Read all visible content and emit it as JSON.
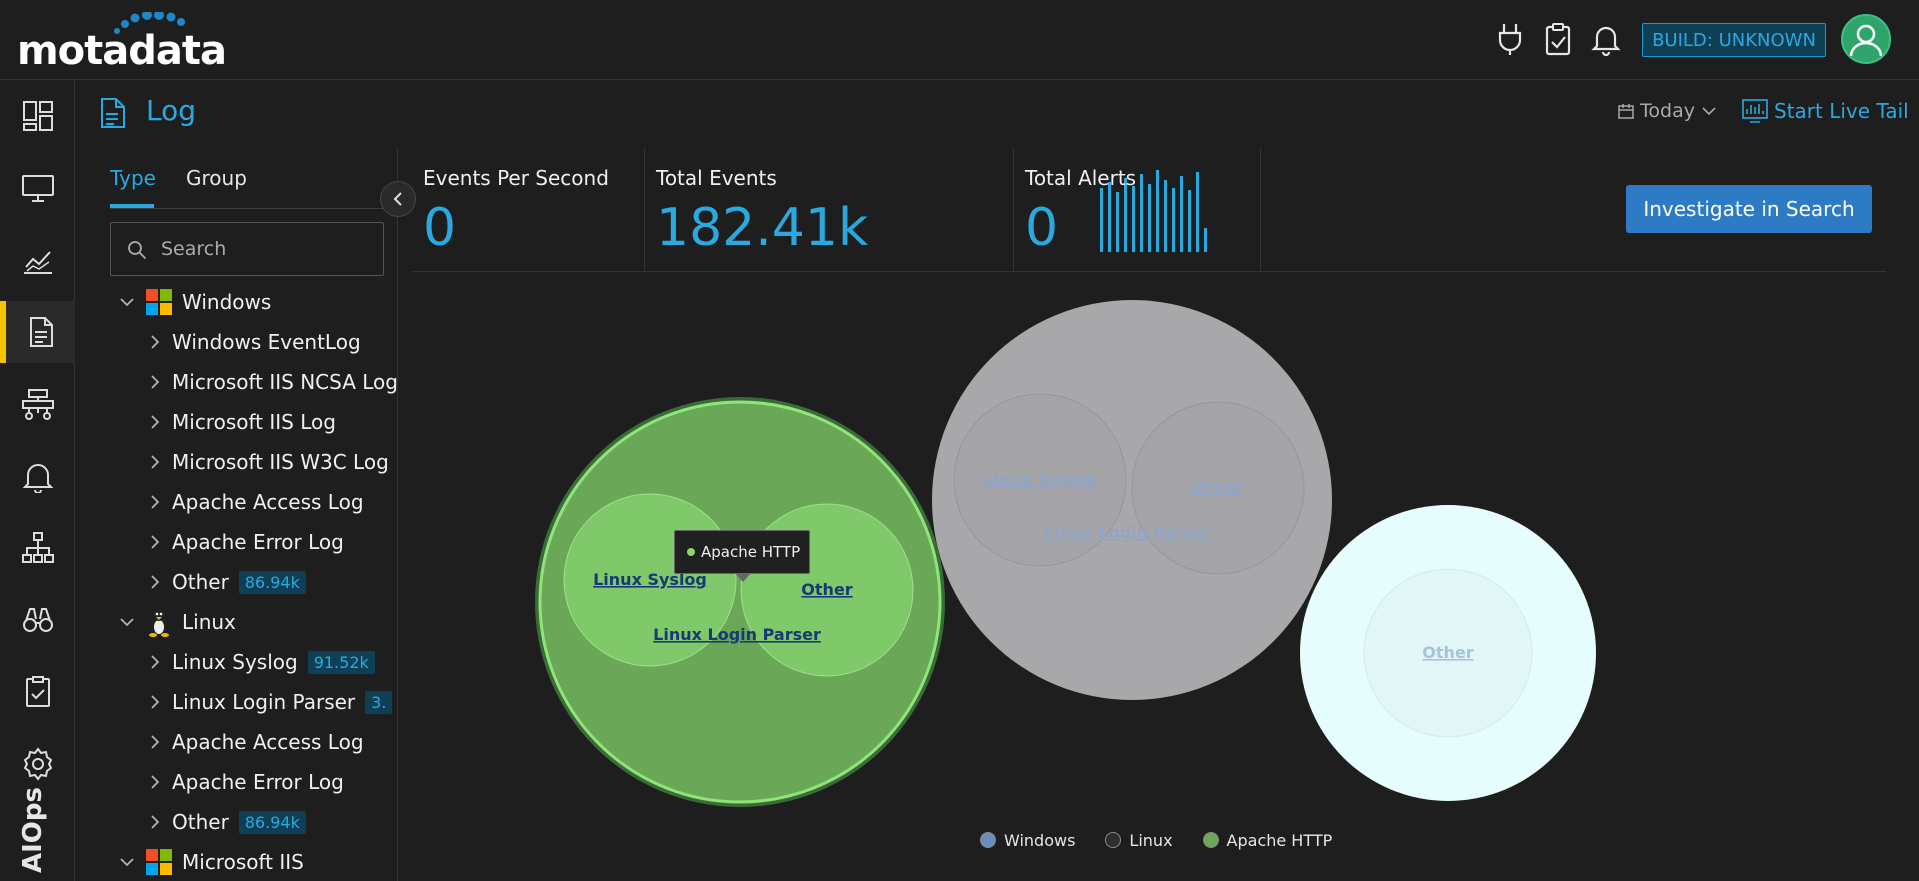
{
  "brand": {
    "logo_text": "motadata"
  },
  "topbar": {
    "build_label": "BUILD: UNKNOWN",
    "icons": [
      "plug-icon",
      "clipboard-check-icon",
      "bell-icon",
      "user-avatar"
    ]
  },
  "nav": {
    "items": [
      "dashboard-icon",
      "monitor-icon",
      "metrics-icon",
      "log-icon",
      "topology-icon",
      "alert-bell-icon",
      "network-icon",
      "binoculars-icon",
      "report-icon",
      "settings-icon"
    ],
    "active": "log-icon",
    "aiops_label": "AIOps"
  },
  "page": {
    "title": "Log",
    "time_range": "Today",
    "live_tail": "Start Live Tail"
  },
  "sidebar": {
    "tabs": [
      {
        "label": "Type"
      },
      {
        "label": "Group"
      }
    ],
    "active_tab": "Type",
    "search_placeholder": "Search",
    "tree": [
      {
        "label": "Windows",
        "level": 0,
        "expanded": true,
        "icon": "windows-icon"
      },
      {
        "label": "Windows EventLog",
        "level": 1
      },
      {
        "label": "Microsoft IIS NCSA Log",
        "level": 1
      },
      {
        "label": "Microsoft IIS Log",
        "level": 1
      },
      {
        "label": "Microsoft IIS W3C Log",
        "level": 1
      },
      {
        "label": "Apache Access Log",
        "level": 1
      },
      {
        "label": "Apache Error Log",
        "level": 1
      },
      {
        "label": "Other",
        "level": 1,
        "badge": "86.94k"
      },
      {
        "label": "Linux",
        "level": 0,
        "expanded": true,
        "icon": "linux-icon"
      },
      {
        "label": "Linux Syslog",
        "level": 1,
        "badge": "91.52k"
      },
      {
        "label": "Linux Login Parser",
        "level": 1,
        "badge": "3."
      },
      {
        "label": "Apache Access Log",
        "level": 1
      },
      {
        "label": "Apache Error Log",
        "level": 1
      },
      {
        "label": "Other",
        "level": 1,
        "badge": "86.94k"
      },
      {
        "label": "Microsoft IIS",
        "level": 0,
        "expanded": true,
        "icon": "microsoft-icon"
      }
    ]
  },
  "stats": {
    "eps_label": "Events Per Second",
    "eps_value": "0",
    "total_events_label": "Total Events",
    "total_events_value": "182.41k",
    "total_alerts_label": "Total Alerts",
    "total_alerts_value": "0",
    "investigate_button": "Investigate in Search"
  },
  "chart_data": {
    "type": "bubble-pack",
    "groups": [
      {
        "name": "Apache HTTP",
        "color": "#6aa858",
        "children": [
          "Linux Syslog",
          "Other",
          "Linux Login Parser"
        ]
      },
      {
        "name": "Linux",
        "color": "#a8a7aa",
        "children": [
          "Linux Syslog",
          "Other",
          "Linux Login Parser"
        ]
      },
      {
        "name": "Windows",
        "color": "#e6fdfe",
        "children": [
          "Other"
        ]
      }
    ],
    "legend": [
      {
        "name": "Windows",
        "color": "#6a8fbf"
      },
      {
        "name": "Linux",
        "color": "#2e2e2e"
      },
      {
        "name": "Apache HTTP",
        "color": "#6aa858"
      }
    ],
    "tooltip": "Apache HTTP"
  }
}
